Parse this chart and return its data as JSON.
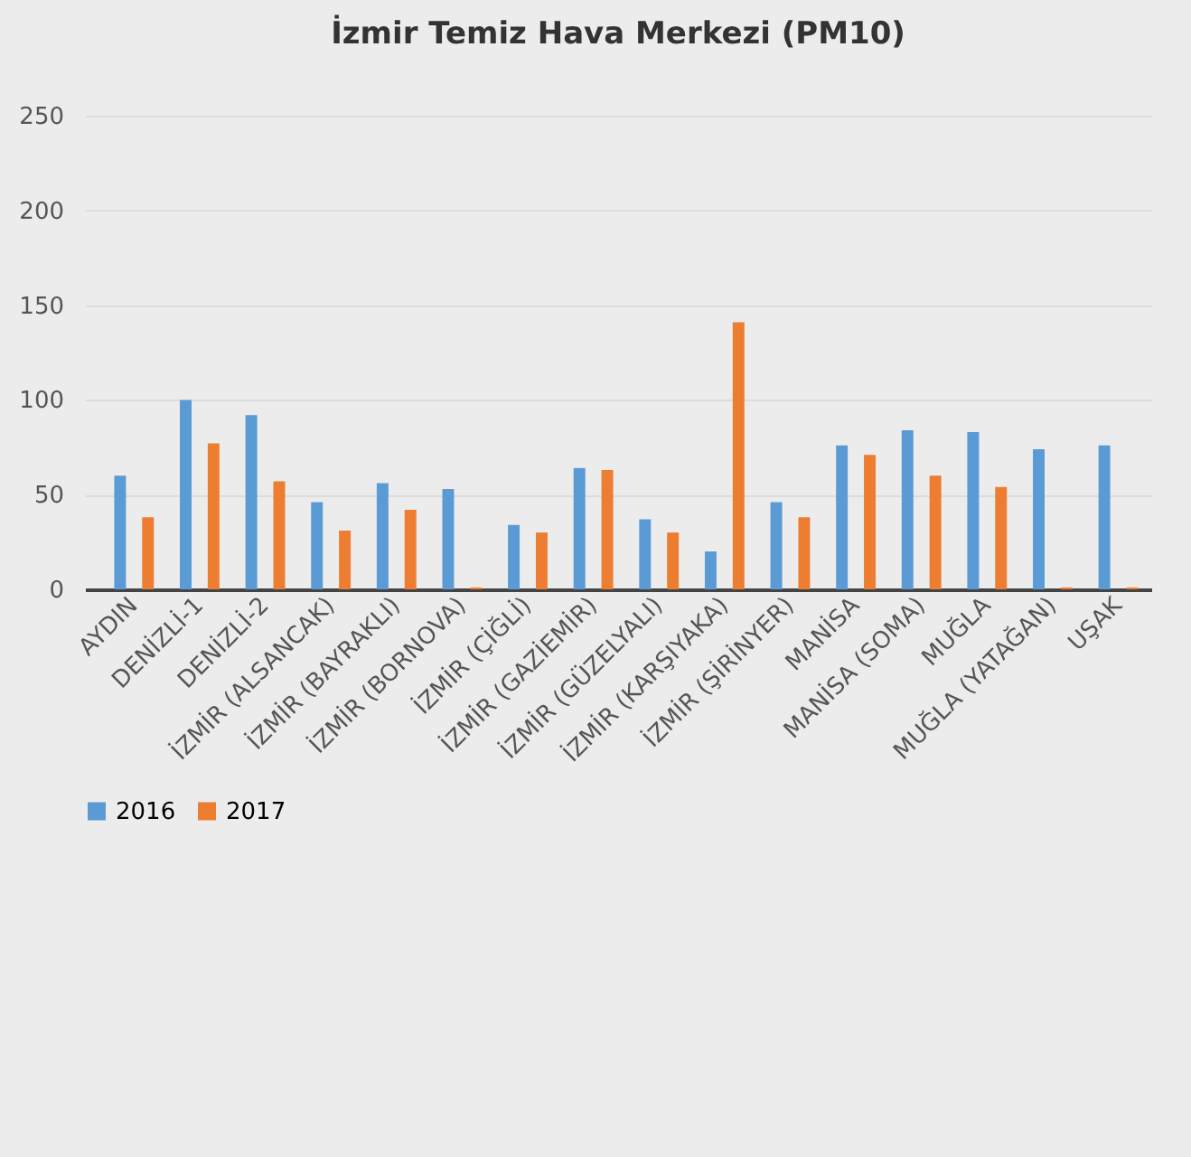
{
  "chart_data": {
    "type": "bar",
    "title": "İzmir Temiz Hava Merkezi (PM10)",
    "categories": [
      "AYDIN",
      "DENİZLİ-1",
      "DENİZLİ-2",
      "İZMİR (ALSANCAK)",
      "İZMİR (BAYRAKLI)",
      "İZMİR (BORNOVA)",
      "İZMİR (ÇİĞLİ)",
      "İZMİR (GAZİEMİR)",
      "İZMİR (GÜZELYALI)",
      "İZMİR (KARŞIYAKA)",
      "İZMİR (ŞİRİNYER)",
      "MANİSA",
      "MANİSA (SOMA)",
      "MUĞLA",
      "MUĞLA (YATAĞAN)",
      "UŞAK"
    ],
    "series": [
      {
        "name": "2016",
        "color": "#5b9bd5",
        "values": [
          60,
          100,
          92,
          46,
          56,
          53,
          34,
          64,
          37,
          20,
          46,
          76,
          84,
          83,
          74,
          76
        ]
      },
      {
        "name": "2017",
        "color": "#ed7d31",
        "values": [
          38,
          77,
          57,
          31,
          42,
          1,
          30,
          63,
          30,
          141,
          38,
          71,
          60,
          54,
          1,
          1
        ]
      }
    ],
    "ylim": [
      0,
      250
    ],
    "yticks": [
      0,
      50,
      100,
      150,
      200,
      250
    ],
    "grid": "y",
    "legend": "bottom"
  }
}
